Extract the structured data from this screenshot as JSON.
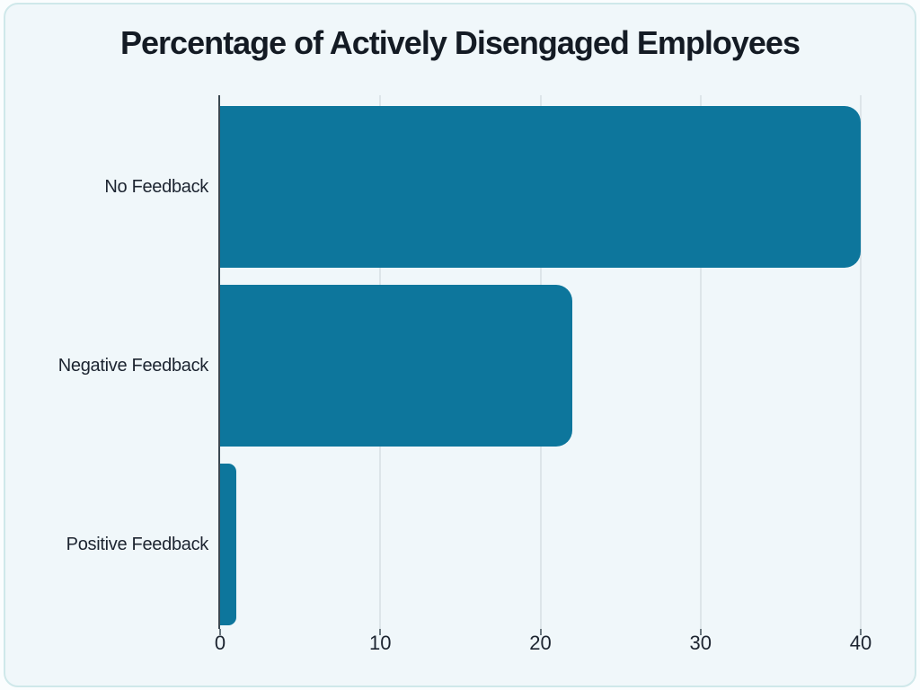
{
  "page": {
    "outer_background": "#fafdfe",
    "card_background": "#f0f7fa",
    "card_border_color": "#cfe8ea"
  },
  "chart_data": {
    "type": "bar",
    "orientation": "horizontal",
    "title": "Percentage of Actively Disengaged Employees",
    "categories": [
      "No Feedback",
      "Negative Feedback",
      "Positive Feedback"
    ],
    "values": [
      40,
      22,
      1
    ],
    "xlabel": "",
    "ylabel": "",
    "xlim": [
      0,
      40
    ],
    "xticks": [
      0,
      10,
      20,
      30,
      40
    ],
    "bar_color": "#0d769c",
    "gridline_color": "#dde5e9",
    "axis_spine_color": "#3a4750",
    "tick_color": "#6b7880",
    "text_color": "#1c2430",
    "grid": "vertical-only",
    "legend": "none"
  }
}
